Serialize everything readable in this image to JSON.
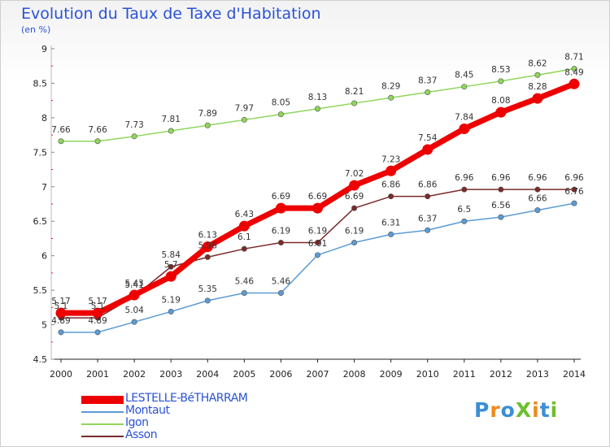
{
  "title": "Evolution du Taux de Taxe d'Habitation",
  "subtitle": "(en %)",
  "logo": {
    "text": "ProXiti",
    "letters": [
      {
        "ch": "P",
        "color": "#3a8fd6"
      },
      {
        "ch": "r",
        "color": "#f08a1c"
      },
      {
        "ch": "o",
        "color": "#3a8fd6"
      },
      {
        "ch": "X",
        "color": "#6cbf2e"
      },
      {
        "ch": "i",
        "color": "#f08a1c"
      },
      {
        "ch": "t",
        "color": "#3a8fd6"
      },
      {
        "ch": "i",
        "color": "#6cbf2e"
      }
    ]
  },
  "chart_data": {
    "type": "line",
    "title": "Evolution du Taux de Taxe d'Habitation",
    "subtitle": "(en %)",
    "x": [
      "2000",
      "2001",
      "2002",
      "2003",
      "2004",
      "2005",
      "2006",
      "2007",
      "2008",
      "2009",
      "2010",
      "2011",
      "2012",
      "2013",
      "2014"
    ],
    "ylim": [
      4.5,
      9
    ],
    "yticks": [
      "4.5",
      "5",
      "5.5",
      "6",
      "6.5",
      "7",
      "7.5",
      "8",
      "8.5",
      "9"
    ],
    "grid": false,
    "legend_position": "bottom-left",
    "series": [
      {
        "name": "LESTELLE-BéTHARRAM",
        "color": "#ee0000",
        "width": 7,
        "values": [
          5.17,
          5.17,
          5.43,
          5.7,
          6.13,
          6.43,
          6.69,
          6.69,
          7.02,
          7.23,
          7.54,
          7.84,
          8.08,
          8.28,
          8.49
        ],
        "labels": [
          "5.17",
          "5.17",
          "5.43",
          "5.7",
          "6.13",
          "6.43",
          "6.69",
          "6.69",
          "7.02",
          "7.23",
          "7.54",
          "7.84",
          "8.08",
          "8.28",
          "8.49"
        ]
      },
      {
        "name": "Montaut",
        "color": "#5b9bd5",
        "width": 1.5,
        "values": [
          4.89,
          4.89,
          5.04,
          5.19,
          5.35,
          5.46,
          5.46,
          6.01,
          6.19,
          6.31,
          6.37,
          6.5,
          6.56,
          6.66,
          6.76
        ],
        "labels": [
          "4.89",
          "4.89",
          "5.04",
          "5.19",
          "5.35",
          "5.46",
          "5.46",
          "6.01",
          "6.19",
          "6.31",
          "6.37",
          "6.5",
          "6.56",
          "6.66",
          "6.76"
        ]
      },
      {
        "name": "Igon",
        "color": "#8fd65a",
        "width": 1.5,
        "values": [
          7.66,
          7.66,
          7.73,
          7.81,
          7.89,
          7.97,
          8.05,
          8.13,
          8.21,
          8.29,
          8.37,
          8.45,
          8.53,
          8.62,
          8.71
        ],
        "labels": [
          "7.66",
          "7.66",
          "7.73",
          "7.81",
          "7.89",
          "7.97",
          "8.05",
          "8.13",
          "8.21",
          "8.29",
          "8.37",
          "8.45",
          "8.53",
          "8.62",
          "8.71"
        ]
      },
      {
        "name": "Asson",
        "color": "#7b2a2a",
        "width": 1.5,
        "values": [
          5.1,
          5.1,
          5.41,
          5.84,
          5.98,
          6.1,
          6.19,
          6.19,
          6.69,
          6.86,
          6.86,
          6.96,
          6.96,
          6.96,
          6.96
        ],
        "labels": [
          "5.1",
          "5.1",
          "5.41",
          "5.84",
          "5.98",
          "6.1",
          "6.19",
          "6.19",
          "6.69",
          "6.86",
          "6.86",
          "6.96",
          "6.96",
          "6.96",
          "6.96"
        ]
      }
    ]
  }
}
